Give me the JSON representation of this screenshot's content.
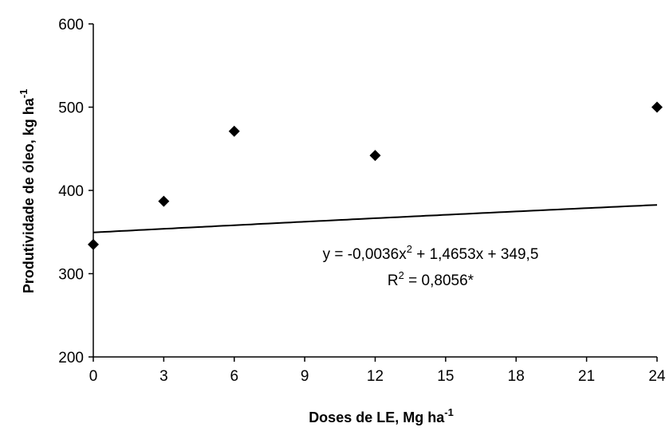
{
  "chart_data": {
    "type": "scatter",
    "title": "",
    "xlabel": "Doses de LE, Mg ha",
    "xlabel_sup": "-1",
    "ylabel": "Produtividade de óleo, kg ha",
    "ylabel_sup": "-1",
    "xlim": [
      0,
      24
    ],
    "ylim": [
      200,
      600
    ],
    "xticks": [
      0,
      3,
      6,
      9,
      12,
      15,
      18,
      21,
      24
    ],
    "yticks": [
      200,
      300,
      400,
      500,
      600
    ],
    "grid": false,
    "legend": "none",
    "series": [
      {
        "marker": "diamond",
        "color": "#000000",
        "x": [
          0,
          3,
          6,
          12,
          24
        ],
        "y": [
          335,
          387,
          471,
          442,
          500
        ]
      }
    ],
    "trendline": {
      "type": "polynomial",
      "coefficients": {
        "a": -0.0036,
        "b": 1.4653,
        "c": 349.5
      },
      "color": "#000000"
    },
    "annotations": {
      "equation": {
        "part1": "y = -0,0036x",
        "sup": "2",
        "part2": " + 1,4653x + 349,5"
      },
      "r2": {
        "prefix": "R",
        "sup": "2",
        "suffix": " = 0,8056*"
      }
    }
  }
}
